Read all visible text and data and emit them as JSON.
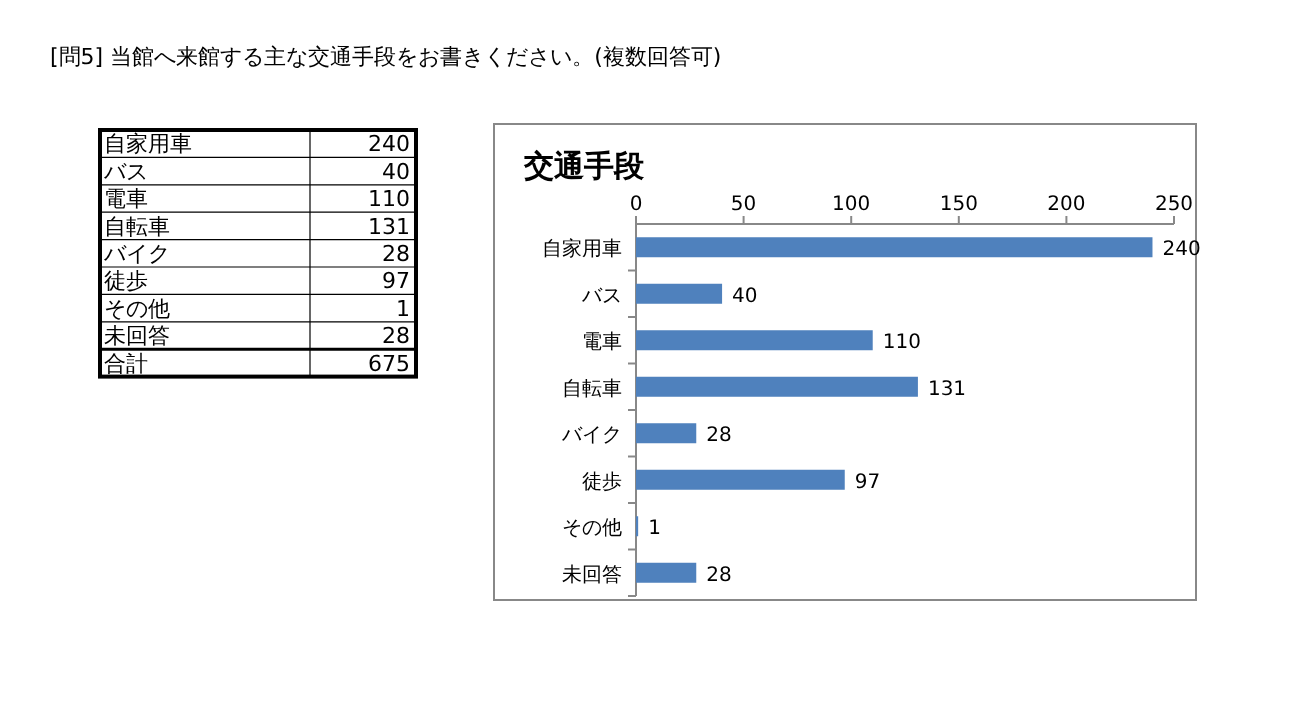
{
  "chart_data": [
    {
      "type": "other",
      "title": "[問5] 当館へ来館する主な交通手段をお書きください。(複数回答可)",
      "annotations": [
        "自家用車",
        "240",
        "バス",
        "40",
        "電車",
        "110",
        "自転車",
        "131",
        "バイク",
        "28",
        "徒歩",
        "97",
        "その他",
        "1",
        "未回答",
        "28",
        "合計",
        "675"
      ]
    },
    {
      "type": "bar",
      "orientation": "horizontal",
      "title": "交通手段",
      "categories": [
        "自家用車",
        "バス",
        "電車",
        "自転車",
        "バイク",
        "徒歩",
        "その他",
        "未回答"
      ],
      "values": [
        240,
        40,
        110,
        131,
        28,
        97,
        1,
        28
      ],
      "color": "#4f81bd",
      "xlim": [
        0,
        250
      ],
      "xticks": [
        0,
        50,
        100,
        150,
        200,
        250
      ],
      "data_labels": true,
      "grid": false
    }
  ]
}
